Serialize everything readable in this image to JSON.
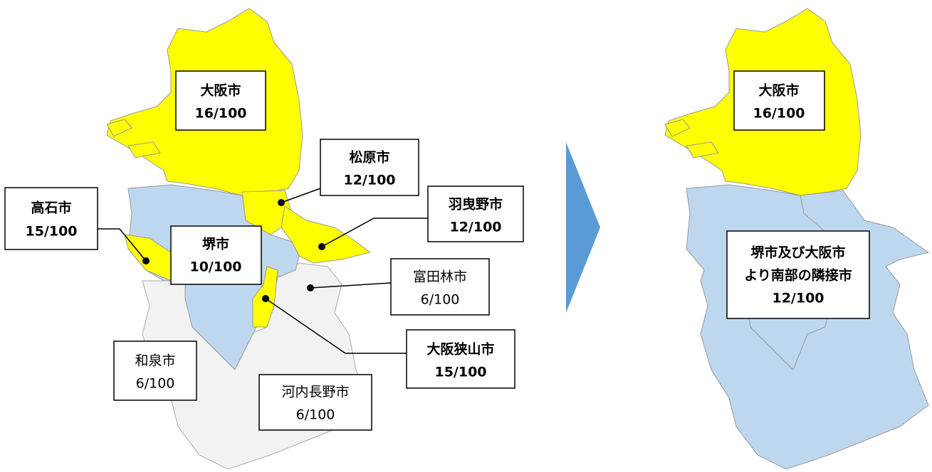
{
  "left_map": {
    "labels": [
      {
        "name": "大阪市",
        "ratio": "16/100"
      },
      {
        "name": "松原市",
        "ratio": "12/100"
      },
      {
        "name": "羽曳野市",
        "ratio": "12/100"
      },
      {
        "name": "高石市",
        "ratio": "15/100"
      },
      {
        "name": "堺市",
        "ratio": "10/100"
      },
      {
        "name": "富田林市",
        "ratio": "6/100"
      },
      {
        "name": "大阪狭山市",
        "ratio": "15/100"
      },
      {
        "name": "和泉市",
        "ratio": "6/100"
      },
      {
        "name": "河内長野市",
        "ratio": "6/100"
      }
    ]
  },
  "right_map": {
    "labels": [
      {
        "name": "大阪市",
        "ratio": "16/100"
      },
      {
        "name_lines": [
          "堺市及び大阪市",
          "より南部の隣接市"
        ],
        "ratio": "12/100"
      }
    ]
  }
}
